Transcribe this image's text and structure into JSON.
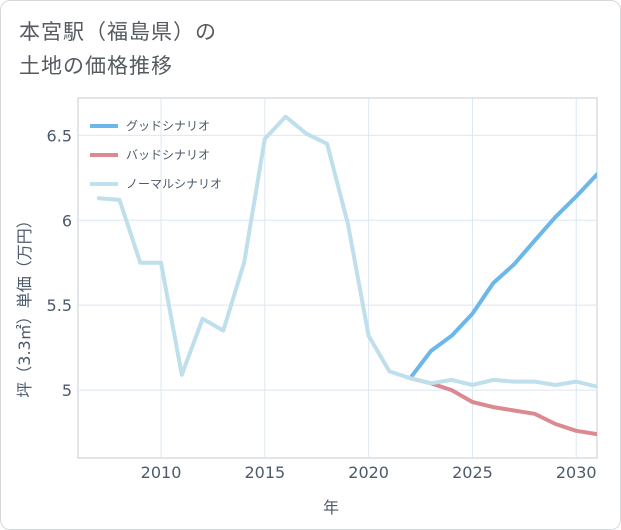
{
  "title": {
    "line1": "本宮駅（福島県）の",
    "line2": "土地の価格推移"
  },
  "chart_data": {
    "type": "line",
    "xlabel": "年",
    "ylabel": "坪（3.3㎡）単価（万円）",
    "xlim": [
      2006,
      2031
    ],
    "ylim": [
      4.6,
      6.72
    ],
    "x_ticks": [
      2010,
      2015,
      2020,
      2025,
      2030
    ],
    "y_ticks": [
      5,
      5.5,
      6,
      6.5
    ],
    "y_tick_labels": [
      "5",
      "5.5",
      "6",
      "6.5"
    ],
    "legend_position": "top-left",
    "series": [
      {
        "name": "グッドシナリオ",
        "color": "#6bb7ea",
        "x": [
          2022,
          2023,
          2024,
          2025,
          2026,
          2027,
          2028,
          2029,
          2030,
          2031
        ],
        "values": [
          5.07,
          5.23,
          5.32,
          5.45,
          5.63,
          5.74,
          5.88,
          6.02,
          6.14,
          6.27
        ]
      },
      {
        "name": "バッドシナリオ",
        "color": "#dc8a92",
        "x": [
          2022,
          2023,
          2024,
          2025,
          2026,
          2027,
          2028,
          2029,
          2030,
          2031
        ],
        "values": [
          5.07,
          5.04,
          5.0,
          4.93,
          4.9,
          4.88,
          4.86,
          4.8,
          4.76,
          4.74
        ]
      },
      {
        "name": "ノーマルシナリオ",
        "color": "#bfdfec",
        "x": [
          2007,
          2008,
          2009,
          2010,
          2011,
          2012,
          2013,
          2014,
          2015,
          2016,
          2017,
          2018,
          2019,
          2020,
          2021,
          2022,
          2023,
          2024,
          2025,
          2026,
          2027,
          2028,
          2029,
          2030,
          2031
        ],
        "values": [
          6.13,
          6.12,
          5.75,
          5.75,
          5.09,
          5.42,
          5.35,
          5.75,
          6.48,
          6.61,
          6.51,
          6.45,
          5.98,
          5.32,
          5.11,
          5.07,
          5.04,
          5.06,
          5.03,
          5.06,
          5.05,
          5.05,
          5.03,
          5.05,
          5.02
        ]
      }
    ]
  }
}
